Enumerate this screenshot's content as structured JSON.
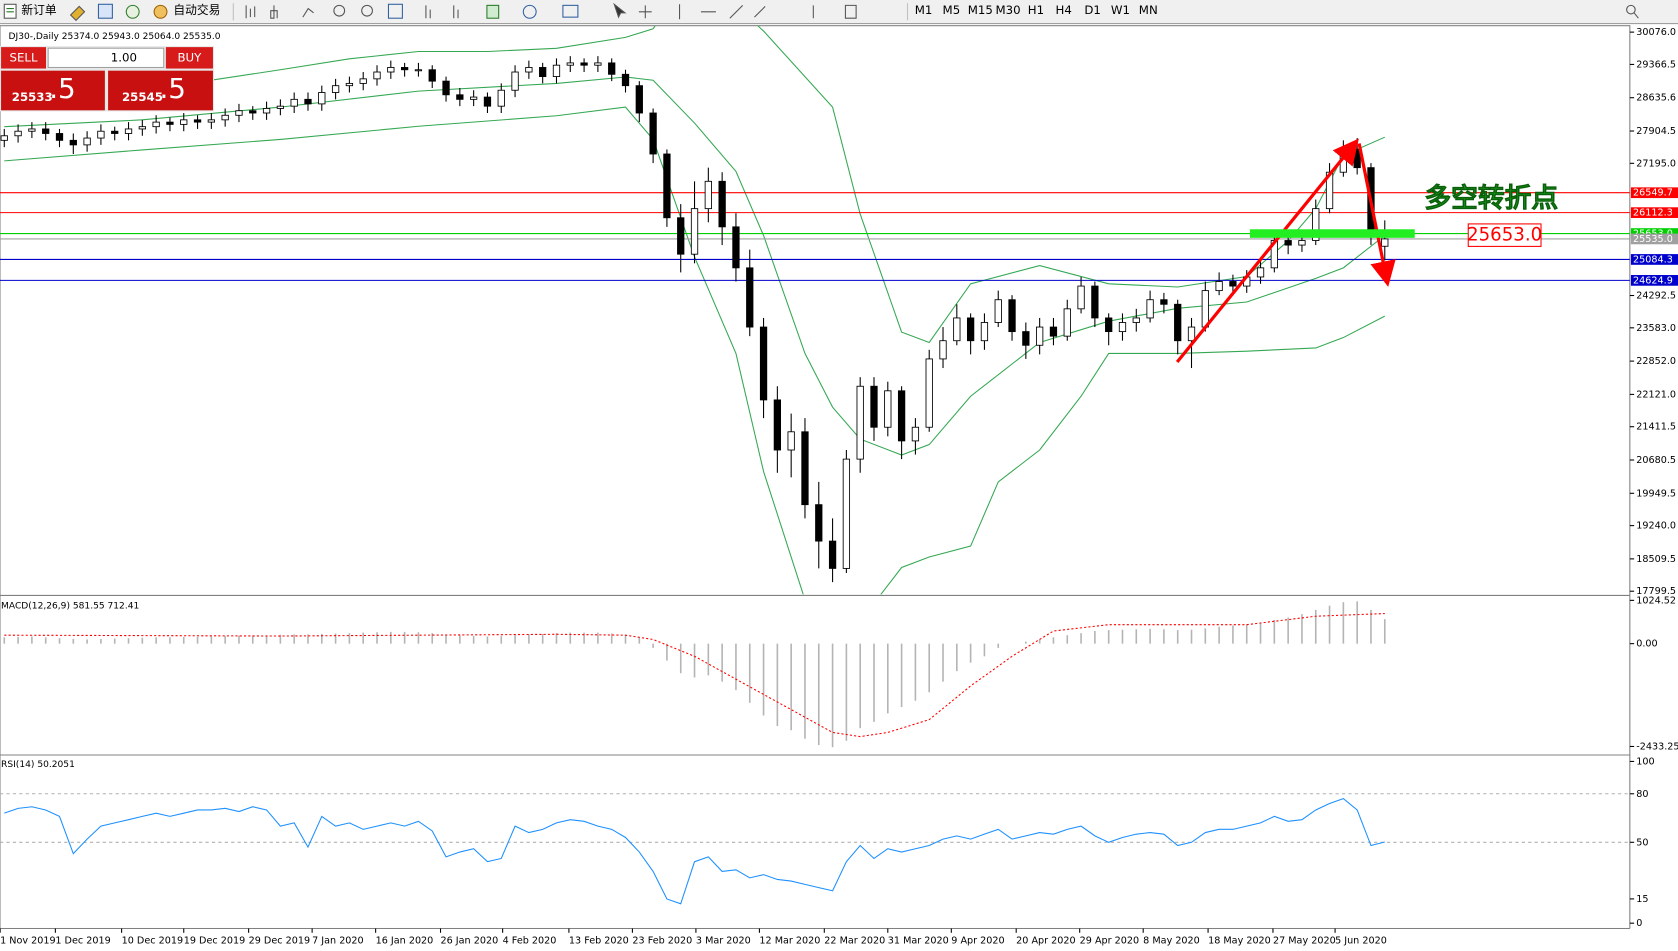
{
  "toolbar": {
    "new_order": "新订单",
    "auto_trading": "自动交易",
    "timeframes": [
      "M1",
      "M5",
      "M15",
      "M30",
      "H1",
      "H4",
      "D1",
      "W1",
      "MN"
    ]
  },
  "trade_panel": {
    "sell": "SELL",
    "lots": "1.00",
    "buy": "BUY",
    "bid_big": "25533",
    "bid_small": ".5",
    "ask_big": "25545",
    "ask_small": ".5"
  },
  "chart_data": [
    {
      "type": "candlestick",
      "title": "DJ30-,Daily  25374.0 25943.0 25064.0 25535.0",
      "candles": [
        [
          27700,
          27950,
          27550,
          27800
        ],
        [
          27800,
          28050,
          27650,
          27900
        ],
        [
          27900,
          28100,
          27750,
          27950
        ],
        [
          27950,
          28100,
          27700,
          27850
        ],
        [
          27850,
          27950,
          27550,
          27700
        ],
        [
          27700,
          27850,
          27400,
          27600
        ],
        [
          27600,
          27900,
          27450,
          27750
        ],
        [
          27750,
          28050,
          27600,
          27900
        ],
        [
          27900,
          28000,
          27700,
          27850
        ],
        [
          27850,
          28100,
          27700,
          27950
        ],
        [
          27950,
          28150,
          27800,
          28000
        ],
        [
          28000,
          28250,
          27850,
          28100
        ],
        [
          28100,
          28200,
          27900,
          28050
        ],
        [
          28050,
          28300,
          27900,
          28150
        ],
        [
          28150,
          28250,
          27950,
          28100
        ],
        [
          28100,
          28300,
          27950,
          28150
        ],
        [
          28150,
          28400,
          28000,
          28250
        ],
        [
          28250,
          28500,
          28100,
          28350
        ],
        [
          28350,
          28450,
          28150,
          28300
        ],
        [
          28300,
          28550,
          28150,
          28400
        ],
        [
          28400,
          28600,
          28250,
          28450
        ],
        [
          28450,
          28750,
          28300,
          28600
        ],
        [
          28600,
          28750,
          28350,
          28500
        ],
        [
          28500,
          28900,
          28350,
          28750
        ],
        [
          28750,
          29050,
          28600,
          28900
        ],
        [
          28900,
          29100,
          28750,
          28950
        ],
        [
          28950,
          29200,
          28800,
          29050
        ],
        [
          29050,
          29350,
          28900,
          29200
        ],
        [
          29200,
          29450,
          29050,
          29300
        ],
        [
          29300,
          29400,
          29100,
          29250
        ],
        [
          29250,
          29400,
          29100,
          29250
        ],
        [
          29250,
          29350,
          28850,
          29000
        ],
        [
          29000,
          29100,
          28550,
          28700
        ],
        [
          28700,
          28850,
          28450,
          28600
        ],
        [
          28600,
          28800,
          28450,
          28650
        ],
        [
          28650,
          28750,
          28300,
          28450
        ],
        [
          28450,
          28950,
          28300,
          28800
        ],
        [
          28800,
          29350,
          28650,
          29200
        ],
        [
          29200,
          29450,
          29050,
          29300
        ],
        [
          29300,
          29400,
          28950,
          29100
        ],
        [
          29100,
          29500,
          28950,
          29350
        ],
        [
          29350,
          29550,
          29200,
          29400
        ],
        [
          29400,
          29500,
          29200,
          29350
        ],
        [
          29350,
          29550,
          29200,
          29400
        ],
        [
          29400,
          29500,
          29000,
          29150
        ],
        [
          29150,
          29250,
          28750,
          28900
        ],
        [
          28900,
          29000,
          28100,
          28300
        ],
        [
          28300,
          28400,
          27200,
          27400
        ],
        [
          27400,
          27500,
          25800,
          26000
        ],
        [
          26000,
          26300,
          24800,
          25200
        ],
        [
          25200,
          26800,
          25000,
          26200
        ],
        [
          26200,
          27100,
          25900,
          26800
        ],
        [
          26800,
          27000,
          25400,
          25800
        ],
        [
          25800,
          26100,
          24600,
          24900
        ],
        [
          24900,
          25300,
          23400,
          23600
        ],
        [
          23600,
          23800,
          21600,
          22000
        ],
        [
          22000,
          22300,
          20400,
          20900
        ],
        [
          20900,
          21700,
          20300,
          21300
        ],
        [
          21300,
          21600,
          19400,
          19700
        ],
        [
          19700,
          20200,
          18300,
          18900
        ],
        [
          18900,
          19400,
          18000,
          18300
        ],
        [
          18300,
          20900,
          18200,
          20700
        ],
        [
          20700,
          22500,
          20400,
          22300
        ],
        [
          22300,
          22500,
          21100,
          21400
        ],
        [
          21400,
          22400,
          21200,
          22200
        ],
        [
          22200,
          22300,
          20700,
          21100
        ],
        [
          21100,
          21600,
          20800,
          21400
        ],
        [
          21400,
          23100,
          21300,
          22900
        ],
        [
          22900,
          23600,
          22700,
          23300
        ],
        [
          23300,
          24100,
          23200,
          23800
        ],
        [
          23800,
          23900,
          23000,
          23300
        ],
        [
          23300,
          23900,
          23100,
          23700
        ],
        [
          23700,
          24400,
          23600,
          24200
        ],
        [
          24200,
          24300,
          23300,
          23500
        ],
        [
          23500,
          23700,
          22900,
          23200
        ],
        [
          23200,
          23800,
          23000,
          23600
        ],
        [
          23600,
          23800,
          23200,
          23400
        ],
        [
          23400,
          24200,
          23300,
          24000
        ],
        [
          24000,
          24700,
          23900,
          24500
        ],
        [
          24500,
          24600,
          23600,
          23800
        ],
        [
          23800,
          23900,
          23200,
          23500
        ],
        [
          23500,
          23900,
          23300,
          23700
        ],
        [
          23700,
          24000,
          23500,
          23800
        ],
        [
          23800,
          24400,
          23700,
          24200
        ],
        [
          24200,
          24350,
          23900,
          24100
        ],
        [
          24100,
          24200,
          23000,
          23300
        ],
        [
          23300,
          23800,
          22700,
          23600
        ],
        [
          23600,
          24600,
          23500,
          24400
        ],
        [
          24400,
          24800,
          24300,
          24600
        ],
        [
          24600,
          24750,
          24300,
          24500
        ],
        [
          24500,
          24850,
          24350,
          24700
        ],
        [
          24700,
          25100,
          24550,
          24900
        ],
        [
          24900,
          25700,
          24800,
          25500
        ],
        [
          25500,
          25650,
          25200,
          25400
        ],
        [
          25400,
          25700,
          25250,
          25500
        ],
        [
          25500,
          26400,
          25400,
          26200
        ],
        [
          26200,
          27200,
          26100,
          27000
        ],
        [
          27000,
          27700,
          26900,
          27500
        ],
        [
          27500,
          27750,
          26950,
          27100
        ],
        [
          27100,
          27200,
          25400,
          25700
        ],
        [
          25374,
          25943,
          25064,
          25535
        ]
      ],
      "ylim": [
        17730,
        30170
      ],
      "yticks": [
        {
          "value": 30076,
          "label": "30076.0"
        },
        29366.5,
        28635.6,
        27904.5,
        {
          "value": 27195,
          "label": "27195.0"
        },
        24292.5,
        {
          "value": 23583,
          "label": "23583.0"
        },
        {
          "value": 22852,
          "label": "22852.0"
        },
        {
          "value": 22121,
          "label": "22121.0"
        },
        21411.5,
        20680.5,
        19949.5,
        {
          "value": 19240,
          "label": "19240.0"
        },
        18509.5,
        17799.5
      ],
      "xticks": [
        {
          "value": -0.3,
          "label": "1 Nov 2019"
        },
        {
          "value": 3.7,
          "label": "1 Dec 2019"
        },
        {
          "value": 8.5,
          "label": "10 Dec 2019"
        },
        {
          "value": 13,
          "label": "19 Dec 2019"
        },
        {
          "value": 17.7,
          "label": "29 Dec 2019"
        },
        {
          "value": 22.3,
          "label": "7 Jan 2020"
        },
        {
          "value": 26.9,
          "label": "16 Jan 2020"
        },
        {
          "value": 31.6,
          "label": "26 Jan 2020"
        },
        {
          "value": 36.1,
          "label": "4 Feb 2020"
        },
        {
          "value": 40.9,
          "label": "13 Feb 2020"
        },
        {
          "value": 45.5,
          "label": "23 Feb 2020"
        },
        {
          "value": 50.1,
          "label": "3 Mar 2020"
        },
        {
          "value": 54.7,
          "label": "12 Mar 2020"
        },
        {
          "value": 59.4,
          "label": "22 Mar 2020"
        },
        {
          "value": 64,
          "label": "31 Mar 2020"
        },
        {
          "value": 68.6,
          "label": "9 Apr 2020"
        },
        {
          "value": 73.3,
          "label": "20 Apr 2020"
        },
        {
          "value": 77.9,
          "label": "29 Apr 2020"
        },
        {
          "value": 82.5,
          "label": "8 May 2020"
        },
        {
          "value": 87.2,
          "label": "18 May 2020"
        },
        {
          "value": 91.9,
          "label": "27 May 2020"
        },
        {
          "value": 96.4,
          "label": "5 Jun 2020"
        }
      ],
      "bands": [
        {
          "color": "#35a853",
          "x": [
            0,
            5,
            10,
            15,
            20,
            25,
            30,
            35,
            40,
            45,
            47,
            50,
            55,
            60,
            62,
            65,
            67,
            70,
            75,
            80,
            85,
            90,
            93,
            95,
            97,
            100
          ],
          "values": [
            28950,
            29020,
            29090,
            29020,
            29250,
            29490,
            29650,
            29650,
            29720,
            29960,
            30150,
            31500,
            30100,
            28430,
            26080,
            23490,
            23260,
            24550,
            24950,
            24550,
            24480,
            24710,
            25490,
            26200,
            27370,
            27770
          ]
        },
        {
          "color": "#35a853",
          "x": [
            0,
            10,
            20,
            30,
            40,
            45,
            47,
            50,
            53,
            55,
            58,
            60,
            62,
            65,
            67,
            70,
            75,
            80,
            85,
            90,
            95,
            97,
            100
          ],
          "values": [
            28000,
            28150,
            28430,
            28780,
            28950,
            29090,
            29020,
            28080,
            27020,
            25610,
            23020,
            21840,
            21140,
            20790,
            21020,
            22080,
            23260,
            23730,
            24010,
            24150,
            24670,
            24900,
            25610
          ]
        },
        {
          "color": "#35a853",
          "x": [
            0,
            10,
            20,
            30,
            40,
            45,
            47,
            50,
            53,
            55,
            58,
            60,
            62,
            65,
            67,
            70,
            72,
            75,
            78,
            80,
            85,
            90,
            95,
            97,
            100
          ],
          "values": [
            27250,
            27490,
            27720,
            28010,
            28240,
            28430,
            27720,
            25140,
            23020,
            20430,
            17610,
            16670,
            17140,
            18320,
            18550,
            18790,
            20200,
            20900,
            22080,
            23020,
            23020,
            23070,
            23140,
            23370,
            23840
          ]
        }
      ],
      "levels": [
        {
          "value": 26549.7,
          "color": "#ff0000"
        },
        {
          "value": 26112.3,
          "color": "#ff0000"
        },
        {
          "value": 25653,
          "label": "25653.0",
          "color": "#00d000"
        },
        {
          "value": 25535,
          "label": "25535.0",
          "color": "#a0a0a0"
        },
        {
          "value": 25084.3,
          "color": "#0000cc"
        },
        {
          "value": 24624.9,
          "color": "#0000cc"
        }
      ],
      "annotation": {
        "text": "多空转折点",
        "level": {
          "value": 25653,
          "label": "25653.0"
        }
      }
    },
    {
      "type": "macd",
      "title": "MACD(12,26,9) 581.55 712.41",
      "values": [
        150,
        160,
        170,
        150,
        130,
        110,
        100,
        110,
        120,
        130,
        140,
        150,
        150,
        160,
        160,
        170,
        180,
        190,
        190,
        200,
        210,
        220,
        220,
        230,
        240,
        250,
        260,
        270,
        280,
        280,
        270,
        250,
        220,
        200,
        180,
        170,
        180,
        200,
        220,
        230,
        250,
        260,
        260,
        260,
        240,
        210,
        150,
        -100,
        -400,
        -700,
        -800,
        -750,
        -900,
        -1100,
        -1400,
        -1700,
        -1950,
        -2050,
        -2250,
        -2400,
        -2450,
        -2300,
        -2000,
        -1850,
        -1650,
        -1500,
        -1350,
        -1150,
        -900,
        -650,
        -450,
        -300,
        -100,
        0,
        50,
        100,
        150,
        200,
        250,
        300,
        320,
        330,
        340,
        350,
        340,
        320,
        330,
        360,
        400,
        430,
        460,
        500,
        560,
        620,
        700,
        800,
        900,
        980,
        1000,
        800,
        581.55
      ],
      "color": "#b4b4b4",
      "signal": {
        "color": "#ff0000",
        "x": [
          0,
          20,
          40,
          45,
          47,
          50,
          55,
          60,
          62,
          64,
          67,
          70,
          73,
          76,
          80,
          90,
          95,
          100
        ],
        "values": [
          200,
          180,
          220,
          200,
          100,
          -300,
          -1200,
          -2100,
          -2200,
          -2100,
          -1800,
          -1000,
          -300,
          300,
          450,
          450,
          650,
          712.41
        ]
      },
      "ylim": [
        -2585,
        1090
      ],
      "yticks": [
        1024.52,
        {
          "value": 0,
          "label": "0.00"
        },
        -2433.25
      ]
    },
    {
      "type": "line",
      "title": "RSI(14) 50.2051",
      "values": [
        68,
        71,
        72,
        70,
        66,
        43,
        52,
        60,
        62,
        64,
        66,
        68,
        66,
        68,
        70,
        70,
        71,
        69,
        72,
        70,
        60,
        62,
        47,
        66,
        60,
        62,
        58,
        60,
        62,
        60,
        63,
        57,
        41,
        44,
        46,
        38,
        40,
        60,
        56,
        58,
        62,
        64,
        63,
        60,
        58,
        53,
        44,
        32,
        15,
        12,
        38,
        41,
        32,
        33,
        28,
        30,
        27,
        26,
        24,
        22,
        20,
        38,
        48,
        40,
        46,
        44,
        46,
        48,
        52,
        54,
        52,
        55,
        58,
        52,
        54,
        56,
        55,
        58,
        60,
        54,
        50,
        53,
        55,
        56,
        55,
        48,
        50,
        56,
        58,
        58,
        60,
        62,
        66,
        63,
        64,
        70,
        74,
        77,
        70,
        48,
        50.2051
      ],
      "color": "#1e90ff",
      "ylim": [
        -3.3,
        103.3
      ],
      "yticks": [
        100,
        80,
        50,
        15,
        0
      ],
      "levels": [
        80,
        50
      ]
    }
  ]
}
